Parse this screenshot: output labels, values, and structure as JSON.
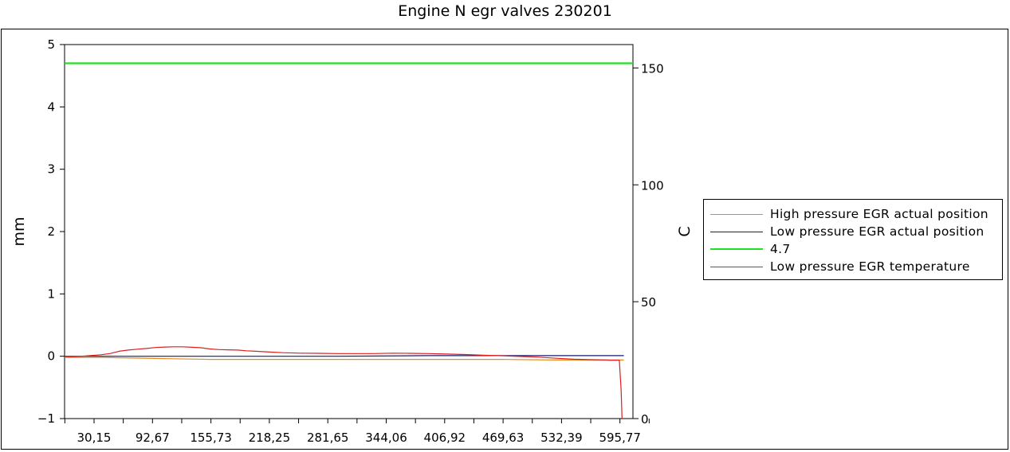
{
  "chart_data": {
    "type": "line",
    "title": "Engine N egr valves 230201",
    "ylabel": "mm",
    "y2label": "C",
    "ylim": [
      -1,
      5
    ],
    "y2lim": [
      0,
      160
    ],
    "xlim": [
      0,
      625
    ],
    "yticks": [
      "5",
      "4",
      "3",
      "2",
      "1",
      "0",
      "−1"
    ],
    "y2ticks": [
      "150",
      "100",
      "50",
      "0"
    ],
    "xticks": [
      "30,15",
      "92,67",
      "155,73",
      "218,25",
      "281,65",
      "344,06",
      "406,92",
      "469,63",
      "532,39",
      "595,77"
    ],
    "grid": false,
    "legend_position": "right",
    "series": [
      {
        "name": "High pressure EGR actual position",
        "color": "#e58a1f",
        "axis": "left",
        "x": [
          0,
          40,
          80,
          120,
          160,
          200,
          240,
          300,
          360,
          420,
          480,
          540,
          600,
          615
        ],
        "y": [
          -0.02,
          -0.02,
          -0.03,
          -0.04,
          -0.05,
          -0.05,
          -0.05,
          -0.05,
          -0.05,
          -0.05,
          -0.05,
          -0.06,
          -0.06,
          -0.06
        ]
      },
      {
        "name": "Low pressure EGR actual position",
        "color": "#1a1a6e",
        "axis": "left",
        "x": [
          0,
          100,
          200,
          300,
          400,
          500,
          600,
          615
        ],
        "y": [
          0.0,
          0.0,
          0.0,
          0.0,
          0.01,
          0.01,
          0.01,
          0.01
        ]
      },
      {
        "name": "4.7",
        "color": "#22e022",
        "axis": "left",
        "x": [
          0,
          625
        ],
        "y": [
          4.7,
          4.7
        ]
      },
      {
        "name": "Low pressure EGR temperature",
        "color": "#dd1f1f",
        "axis": "right",
        "x": [
          0,
          10,
          20,
          30,
          40,
          50,
          60,
          70,
          80,
          90,
          100,
          110,
          120,
          130,
          140,
          150,
          160,
          170,
          180,
          190,
          200,
          210,
          220,
          230,
          240,
          260,
          280,
          300,
          320,
          340,
          360,
          380,
          400,
          420,
          440,
          460,
          480,
          500,
          520,
          540,
          560,
          580,
          600,
          610,
          612,
          613
        ],
        "y": [
          26.5,
          26.5,
          26.7,
          27.0,
          27.3,
          27.8,
          28.8,
          29.3,
          29.7,
          30.0,
          30.4,
          30.6,
          30.7,
          30.7,
          30.5,
          30.3,
          29.8,
          29.5,
          29.4,
          29.3,
          29.0,
          28.8,
          28.6,
          28.4,
          28.2,
          28.0,
          27.9,
          27.8,
          27.8,
          27.8,
          28.0,
          27.9,
          27.8,
          27.6,
          27.4,
          27.1,
          26.9,
          26.6,
          26.3,
          25.8,
          25.4,
          25.2,
          25.0,
          25.0,
          12.0,
          0.0
        ]
      }
    ]
  }
}
